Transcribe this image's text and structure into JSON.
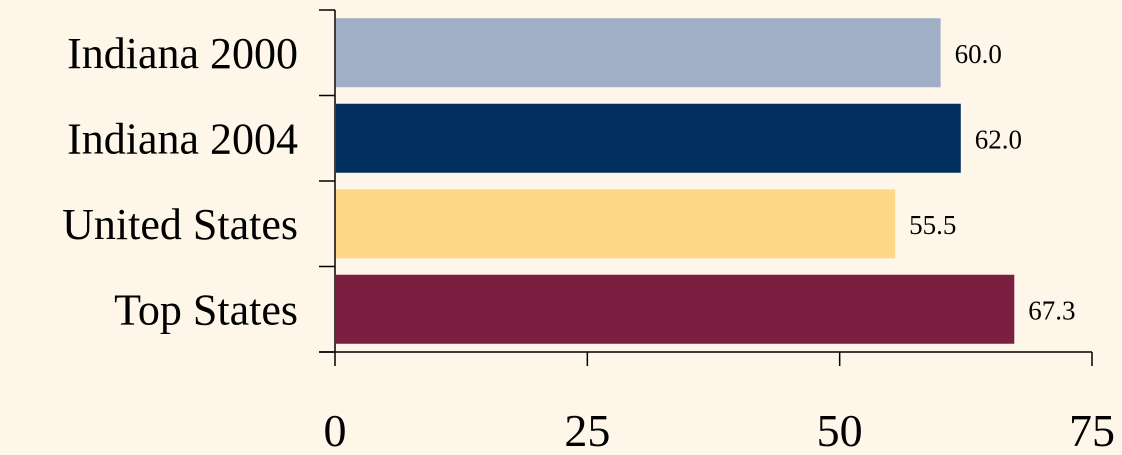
{
  "chart_data": {
    "type": "bar",
    "orientation": "horizontal",
    "categories": [
      "Indiana 2000",
      "Indiana 2004",
      "United States",
      "Top States"
    ],
    "values": [
      60.0,
      62.0,
      55.5,
      67.3
    ],
    "value_labels": [
      "60.0",
      "62.0",
      "55.5",
      "67.3"
    ],
    "colors": [
      "#a0afc6",
      "#02305e",
      "#fed886",
      "#7b1f41"
    ],
    "xlim": [
      0,
      75
    ],
    "x_ticks": [
      0,
      25,
      50,
      75
    ],
    "x_tick_labels": [
      "0",
      "25",
      "50",
      "75"
    ],
    "title": "",
    "xlabel": "",
    "ylabel": "",
    "grid": false,
    "legend": false
  }
}
